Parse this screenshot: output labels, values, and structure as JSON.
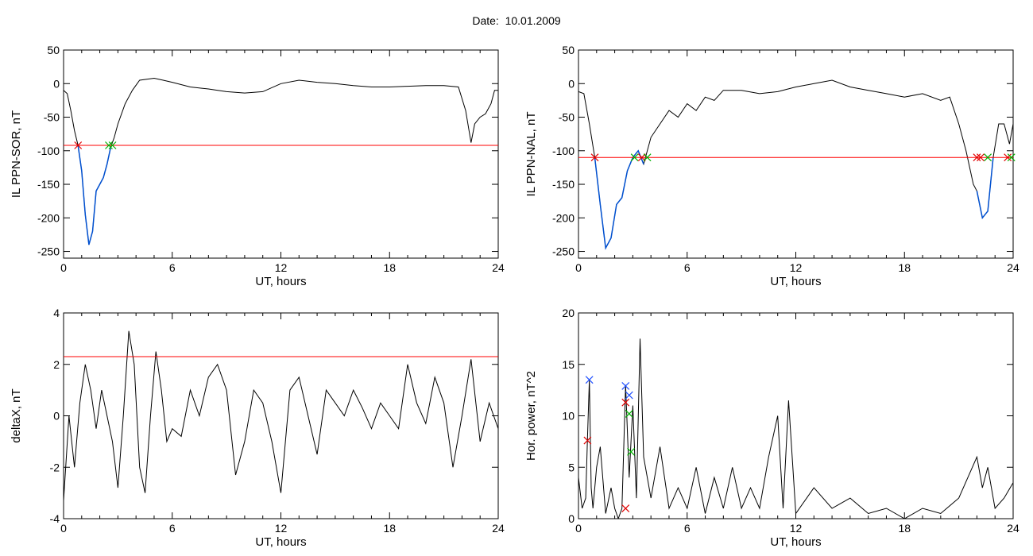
{
  "header": {
    "date_label": "Date:  10.01.2009"
  },
  "colors": {
    "axis": "#000000",
    "trace": "#000000",
    "threshold": "#ff0000",
    "substorm": "#0050d0",
    "marker_red": "#e00000",
    "marker_green": "#00b000",
    "marker_blue": "#2050ff"
  },
  "chart_data": [
    {
      "id": "sor",
      "type": "line",
      "title": "",
      "xlabel": "UT, hours",
      "ylabel": "IL PPN-SOR, nT",
      "xlim": [
        0,
        24
      ],
      "ylim": [
        -260,
        50
      ],
      "xticks": [
        0,
        6,
        12,
        18,
        24
      ],
      "yticks": [
        50,
        0,
        -50,
        -100,
        -150,
        -200,
        -250
      ],
      "threshold": -92,
      "series": [
        {
          "values_x": [
            0,
            0.2,
            0.4,
            0.6,
            0.8,
            1.0,
            1.2,
            1.4,
            1.6,
            1.8,
            2.0,
            2.2,
            2.4,
            2.6,
            2.8,
            3.0,
            3.4,
            3.8,
            4.2,
            5.0,
            5.5,
            6.0,
            7,
            8,
            9,
            10,
            11,
            12,
            13,
            14,
            15,
            16,
            17,
            18,
            19,
            20,
            21,
            21.8,
            22.2,
            22.5,
            22.7,
            23.0,
            23.3,
            23.6,
            23.8,
            24
          ],
          "values_y": [
            -10,
            -15,
            -40,
            -70,
            -92,
            -130,
            -195,
            -240,
            -220,
            -160,
            -150,
            -140,
            -120,
            -95,
            -80,
            -60,
            -30,
            -10,
            5,
            8,
            5,
            2,
            -5,
            -8,
            -12,
            -14,
            -12,
            0,
            5,
            2,
            0,
            -3,
            -5,
            -5,
            -4,
            -3,
            -3,
            -5,
            -40,
            -88,
            -60,
            -50,
            -45,
            -30,
            -10,
            -10
          ]
        }
      ],
      "highlight": {
        "from_x": 0.8,
        "to_x": 2.6
      },
      "markers": [
        {
          "x": 0.8,
          "y": -92,
          "color": "red"
        },
        {
          "x": 2.5,
          "y": -92,
          "color": "green"
        },
        {
          "x": 2.7,
          "y": -92,
          "color": "green"
        }
      ]
    },
    {
      "id": "nal",
      "type": "line",
      "title": "",
      "xlabel": "UT, hours",
      "ylabel": "IL PPN-NAL, nT",
      "xlim": [
        0,
        24
      ],
      "ylim": [
        -260,
        50
      ],
      "xticks": [
        0,
        6,
        12,
        18,
        24
      ],
      "yticks": [
        50,
        0,
        -50,
        -100,
        -150,
        -200,
        -250
      ],
      "threshold": -110,
      "series": [
        {
          "values_x": [
            0,
            0.3,
            0.6,
            0.9,
            1.2,
            1.5,
            1.8,
            2.1,
            2.4,
            2.7,
            3.0,
            3.3,
            3.6,
            4.0,
            4.5,
            5,
            5.5,
            6,
            6.5,
            7,
            7.5,
            8,
            9,
            10,
            11,
            12,
            13,
            14,
            15,
            16,
            17,
            18,
            19,
            20,
            20.5,
            21,
            21.4,
            21.8,
            22.0,
            22.3,
            22.6,
            22.9,
            23.2,
            23.5,
            23.8,
            24
          ],
          "values_y": [
            -12,
            -15,
            -60,
            -110,
            -180,
            -245,
            -230,
            -180,
            -170,
            -130,
            -110,
            -100,
            -120,
            -80,
            -60,
            -40,
            -50,
            -30,
            -40,
            -20,
            -25,
            -10,
            -10,
            -15,
            -12,
            -5,
            0,
            5,
            -5,
            -10,
            -15,
            -20,
            -15,
            -25,
            -20,
            -60,
            -100,
            -150,
            -160,
            -200,
            -190,
            -110,
            -60,
            -60,
            -90,
            -60
          ]
        }
      ],
      "highlight_ranges": [
        {
          "from_x": 0.9,
          "to_x": 3.6
        },
        {
          "from_x": 22.0,
          "to_x": 22.9
        }
      ],
      "markers": [
        {
          "x": 0.9,
          "y": -110,
          "color": "red"
        },
        {
          "x": 3.1,
          "y": -110,
          "color": "green"
        },
        {
          "x": 3.5,
          "y": -110,
          "color": "red"
        },
        {
          "x": 3.8,
          "y": -110,
          "color": "green"
        },
        {
          "x": 22.0,
          "y": -110,
          "color": "red"
        },
        {
          "x": 22.2,
          "y": -110,
          "color": "red"
        },
        {
          "x": 22.6,
          "y": -110,
          "color": "green"
        },
        {
          "x": 23.7,
          "y": -110,
          "color": "red"
        },
        {
          "x": 23.9,
          "y": -110,
          "color": "green"
        }
      ]
    },
    {
      "id": "deltax",
      "type": "line",
      "title": "",
      "xlabel": "UT, hours",
      "ylabel": "deltaX, nT",
      "xlim": [
        0,
        24
      ],
      "ylim": [
        -4,
        4
      ],
      "xticks": [
        0,
        6,
        12,
        18,
        24
      ],
      "yticks": [
        4,
        2,
        0,
        -2,
        -4
      ],
      "threshold": 2.3,
      "series": [
        {
          "values_x": [
            0,
            0.3,
            0.6,
            0.9,
            1.2,
            1.5,
            1.8,
            2.1,
            2.4,
            2.7,
            3.0,
            3.3,
            3.6,
            3.9,
            4.2,
            4.5,
            4.8,
            5.1,
            5.4,
            5.7,
            6.0,
            6.5,
            7,
            7.5,
            8,
            8.5,
            9,
            9.5,
            10,
            10.5,
            11,
            11.5,
            12,
            12.5,
            13,
            13.5,
            14,
            14.5,
            15,
            15.5,
            16,
            16.5,
            17,
            17.5,
            18,
            18.5,
            19,
            19.5,
            20,
            20.5,
            21,
            21.5,
            22,
            22.5,
            23,
            23.5,
            24
          ],
          "values_y": [
            -3.3,
            0,
            -2,
            0.5,
            2,
            1,
            -0.5,
            1,
            0,
            -1,
            -2.8,
            0,
            3.3,
            2,
            -2,
            -3,
            0,
            2.5,
            1,
            -1,
            -0.5,
            -0.8,
            1,
            0,
            1.5,
            2,
            1,
            -2.3,
            -1,
            1,
            0.5,
            -1,
            -3,
            1,
            1.5,
            0,
            -1.5,
            1,
            0.5,
            0,
            1,
            0.3,
            -0.5,
            0.5,
            0,
            -0.5,
            2,
            0.5,
            -0.3,
            1.5,
            0.5,
            -2,
            0,
            2.2,
            -1,
            0.5,
            -0.5
          ]
        }
      ]
    },
    {
      "id": "power",
      "type": "line",
      "title": "",
      "xlabel": "UT, hours",
      "ylabel": "Hor. power, nT^2",
      "xlim": [
        0,
        24
      ],
      "ylim": [
        0,
        20
      ],
      "xticks": [
        0,
        6,
        12,
        18,
        24
      ],
      "yticks": [
        20,
        15,
        10,
        5,
        0
      ],
      "series": [
        {
          "values_x": [
            0,
            0.2,
            0.4,
            0.5,
            0.6,
            0.7,
            0.8,
            1.0,
            1.2,
            1.5,
            1.8,
            2.0,
            2.2,
            2.4,
            2.6,
            2.8,
            3.0,
            3.2,
            3.4,
            3.6,
            3.8,
            4.0,
            4.5,
            5,
            5.5,
            6,
            6.5,
            7,
            7.5,
            8,
            8.5,
            9,
            9.5,
            10,
            10.5,
            11,
            11.3,
            11.6,
            12,
            13,
            14,
            15,
            16,
            17,
            18,
            19,
            20,
            21,
            21.5,
            22,
            22.3,
            22.6,
            23,
            23.5,
            24
          ],
          "values_y": [
            4,
            1,
            2,
            8,
            13.5,
            3,
            1,
            5,
            7,
            0.5,
            3,
            1,
            0,
            1,
            13,
            4,
            11,
            2,
            17.5,
            6,
            4,
            2,
            7,
            1,
            3,
            1,
            5,
            0.5,
            4,
            1,
            5,
            1,
            3,
            1,
            6,
            10,
            1,
            11.5,
            0.5,
            3,
            1,
            2,
            0.5,
            1,
            0,
            1,
            0.5,
            2,
            4,
            6,
            3,
            5,
            1,
            2,
            3.5
          ]
        }
      ],
      "markers": [
        {
          "x": 0.5,
          "y": 7.6,
          "color": "red"
        },
        {
          "x": 0.6,
          "y": 13.5,
          "color": "blue"
        },
        {
          "x": 2.6,
          "y": 1.0,
          "color": "red"
        },
        {
          "x": 2.6,
          "y": 11.3,
          "color": "red"
        },
        {
          "x": 2.6,
          "y": 12.9,
          "color": "blue"
        },
        {
          "x": 2.8,
          "y": 12.0,
          "color": "blue"
        },
        {
          "x": 2.8,
          "y": 10.2,
          "color": "green"
        },
        {
          "x": 2.9,
          "y": 6.5,
          "color": "green"
        }
      ]
    }
  ]
}
